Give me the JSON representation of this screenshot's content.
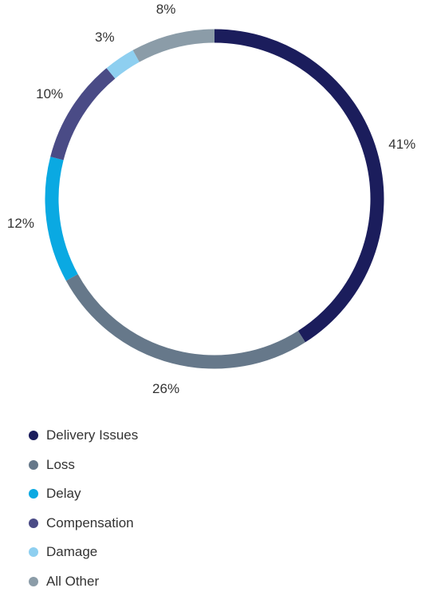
{
  "chart_data": {
    "type": "pie",
    "variant": "donut",
    "title": "",
    "categories": [
      "Delivery Issues",
      "Loss",
      "Delay",
      "Compensation",
      "Damage",
      "All Other"
    ],
    "values": [
      41,
      26,
      12,
      10,
      3,
      8
    ],
    "value_labels": [
      "41%",
      "26%",
      "12%",
      "10%",
      "3%",
      "8%"
    ],
    "colors": [
      "#1b1d5c",
      "#66788a",
      "#0aa9e2",
      "#4a4b86",
      "#8ecff0",
      "#8b9ca8"
    ],
    "start_angle": "top (12 o'clock), clockwise",
    "legend": "bottom-left"
  },
  "legend": {
    "items": [
      {
        "label": "Delivery Issues",
        "color": "#1b1d5c"
      },
      {
        "label": "Loss",
        "color": "#66788a"
      },
      {
        "label": "Delay",
        "color": "#0aa9e2"
      },
      {
        "label": "Compensation",
        "color": "#4a4b86"
      },
      {
        "label": "Damage",
        "color": "#8ecff0"
      },
      {
        "label": "All Other",
        "color": "#8b9ca8"
      }
    ]
  }
}
